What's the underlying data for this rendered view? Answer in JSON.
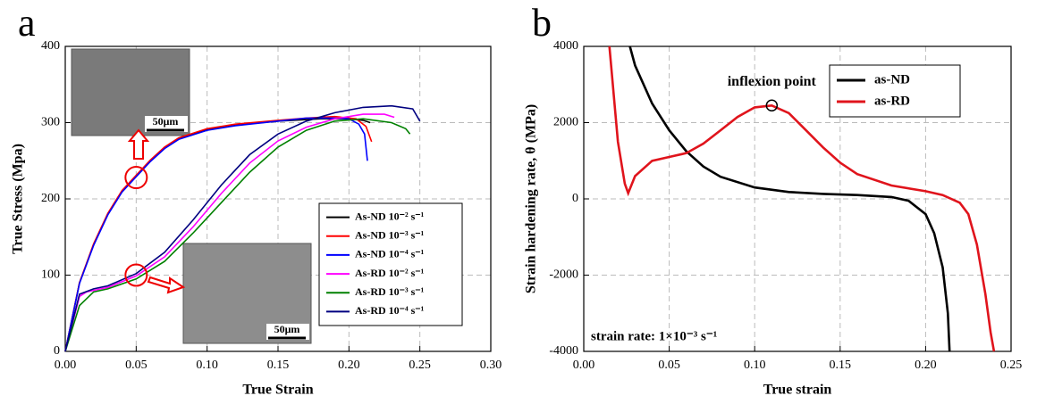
{
  "chart_data": [
    {
      "type": "line",
      "panel": "a",
      "x_label": "True Strain",
      "y_label": "True Stress (Mpa)",
      "xlim": [
        0,
        0.3
      ],
      "ylim": [
        0,
        400
      ],
      "xticks": [
        {
          "value": 0,
          "label": "0.00"
        },
        {
          "value": 0.05,
          "label": "0.05"
        },
        {
          "value": 0.1,
          "label": "0.10"
        },
        {
          "value": 0.15,
          "label": "0.15"
        },
        {
          "value": 0.2,
          "label": "0.20"
        },
        {
          "value": 0.25,
          "label": "0.25"
        },
        {
          "value": 0.3,
          "label": "0.30"
        }
      ],
      "yticks": [
        0,
        100,
        200,
        300,
        400
      ],
      "grid": true,
      "legend": "lower right",
      "series": [
        {
          "name": "As-ND 10⁻² s⁻¹",
          "color": "#000000",
          "x": [
            0,
            0.01,
            0.02,
            0.03,
            0.04,
            0.05,
            0.06,
            0.07,
            0.08,
            0.1,
            0.12,
            0.15,
            0.18,
            0.2,
            0.21,
            0.215
          ],
          "values": [
            0,
            90,
            140,
            180,
            210,
            230,
            250,
            267,
            279,
            291,
            297,
            302,
            305,
            305,
            303,
            300
          ]
        },
        {
          "name": "As-ND 10⁻³ s⁻¹",
          "color": "#ff0000",
          "x": [
            0,
            0.01,
            0.02,
            0.03,
            0.04,
            0.05,
            0.06,
            0.07,
            0.08,
            0.1,
            0.12,
            0.15,
            0.17,
            0.19,
            0.205,
            0.212,
            0.216
          ],
          "values": [
            0,
            90,
            141,
            181,
            211,
            231,
            251,
            268,
            280,
            292,
            298,
            303,
            306,
            308,
            305,
            295,
            275
          ]
        },
        {
          "name": "As-ND 10⁻⁴ s⁻¹",
          "color": "#0000ff",
          "x": [
            0,
            0.01,
            0.02,
            0.03,
            0.04,
            0.05,
            0.06,
            0.07,
            0.08,
            0.1,
            0.12,
            0.15,
            0.17,
            0.19,
            0.2,
            0.207,
            0.211,
            0.213
          ],
          "values": [
            0,
            89,
            139,
            179,
            209,
            229,
            249,
            266,
            278,
            290,
            296,
            302,
            306,
            306,
            305,
            298,
            285,
            250
          ]
        },
        {
          "name": "As-RD 10⁻² s⁻¹",
          "color": "#ff00ff",
          "x": [
            0,
            0.01,
            0.015,
            0.02,
            0.03,
            0.05,
            0.07,
            0.09,
            0.11,
            0.13,
            0.15,
            0.17,
            0.19,
            0.21,
            0.225,
            0.232
          ],
          "values": [
            0,
            72,
            78,
            80,
            84,
            99,
            124,
            163,
            207,
            247,
            276,
            294,
            305,
            311,
            311,
            307
          ]
        },
        {
          "name": "As-RD 10⁻³ s⁻¹",
          "color": "#008000",
          "x": [
            0,
            0.01,
            0.02,
            0.03,
            0.05,
            0.07,
            0.09,
            0.11,
            0.13,
            0.15,
            0.17,
            0.19,
            0.21,
            0.23,
            0.24,
            0.243
          ],
          "values": [
            0,
            60,
            78,
            82,
            95,
            118,
            155,
            195,
            235,
            268,
            290,
            302,
            305,
            300,
            292,
            285
          ]
        },
        {
          "name": "As-RD 10⁻⁴ s⁻¹",
          "color": "#000080",
          "x": [
            0,
            0.01,
            0.02,
            0.03,
            0.05,
            0.07,
            0.09,
            0.11,
            0.13,
            0.15,
            0.17,
            0.19,
            0.21,
            0.23,
            0.245,
            0.25
          ],
          "values": [
            0,
            75,
            82,
            86,
            102,
            130,
            172,
            218,
            258,
            285,
            302,
            313,
            320,
            322,
            318,
            302
          ]
        }
      ],
      "markers": [
        {
          "x": 0.05,
          "y": 228
        },
        {
          "x": 0.05,
          "y": 100
        }
      ],
      "insets": [
        {
          "scale_bar": "50μm"
        },
        {
          "scale_bar": "50μm"
        }
      ]
    },
    {
      "type": "line",
      "panel": "b",
      "x_label": "True strain",
      "y_label": "Strain hardening rate, θ (MPa)",
      "xlim": [
        0,
        0.25
      ],
      "ylim": [
        -4000,
        4000
      ],
      "xticks": [
        {
          "value": 0,
          "label": "0.00"
        },
        {
          "value": 0.05,
          "label": "0.05"
        },
        {
          "value": 0.1,
          "label": "0.10"
        },
        {
          "value": 0.15,
          "label": "0.15"
        },
        {
          "value": 0.2,
          "label": "0.20"
        },
        {
          "value": 0.25,
          "label": "0.25"
        }
      ],
      "yticks": [
        -4000,
        -2000,
        0,
        2000,
        4000
      ],
      "grid": true,
      "legend": "upper right",
      "series": [
        {
          "name": "as-ND",
          "color": "#000000",
          "x": [
            0.027,
            0.03,
            0.04,
            0.05,
            0.06,
            0.07,
            0.08,
            0.1,
            0.12,
            0.14,
            0.16,
            0.18,
            0.19,
            0.2,
            0.205,
            0.21,
            0.213,
            0.214
          ],
          "values": [
            4000,
            3500,
            2500,
            1800,
            1250,
            850,
            580,
            300,
            180,
            130,
            100,
            50,
            -50,
            -400,
            -900,
            -1800,
            -3000,
            -4000
          ]
        },
        {
          "name": "as-RD",
          "color": "#e0141c",
          "x": [
            0.015,
            0.02,
            0.024,
            0.026,
            0.03,
            0.04,
            0.05,
            0.06,
            0.07,
            0.08,
            0.09,
            0.1,
            0.11,
            0.12,
            0.13,
            0.14,
            0.15,
            0.16,
            0.18,
            0.2,
            0.21,
            0.22,
            0.225,
            0.23,
            0.235,
            0.238,
            0.24
          ],
          "values": [
            4000,
            1500,
            400,
            150,
            600,
            1000,
            1100,
            1200,
            1450,
            1800,
            2150,
            2400,
            2450,
            2250,
            1800,
            1350,
            950,
            650,
            350,
            200,
            100,
            -100,
            -400,
            -1200,
            -2500,
            -3500,
            -4000
          ]
        }
      ],
      "inflexion": {
        "label": "inflexion point",
        "x": 0.11,
        "y": 2450
      },
      "note": "strain rate: 1×10⁻³ s⁻¹"
    }
  ]
}
